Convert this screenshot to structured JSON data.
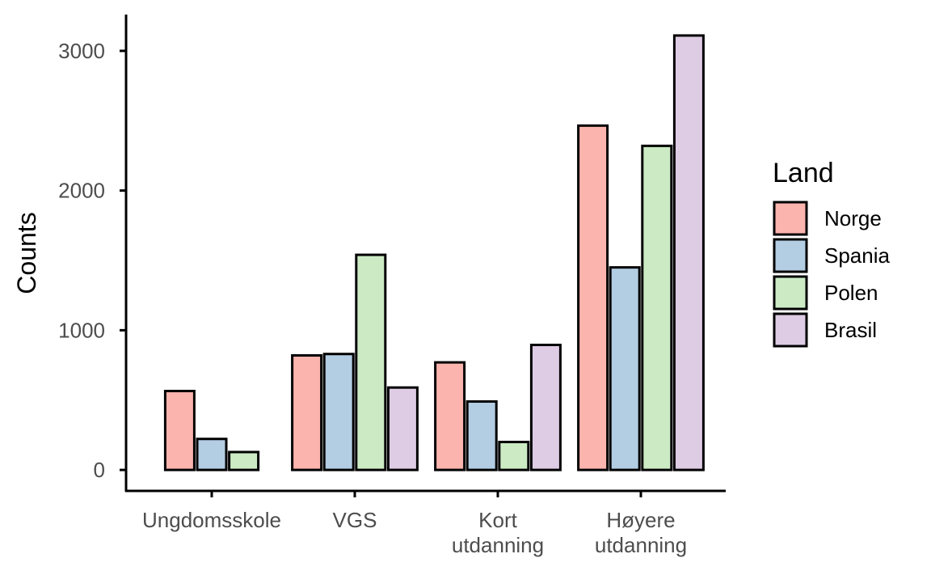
{
  "chart_data": {
    "type": "bar",
    "ylabel": "Counts",
    "xlabel": "",
    "categories": [
      [
        "Ungdomsskole"
      ],
      [
        "VGS"
      ],
      [
        "Kort",
        "utdanning"
      ],
      [
        "Høyere",
        "utdanning"
      ]
    ],
    "series": [
      {
        "name": "Norge",
        "color": "#FBB4AE",
        "values": [
          565,
          820,
          770,
          2465
        ]
      },
      {
        "name": "Spania",
        "color": "#B3CDE3",
        "values": [
          222,
          830,
          490,
          1450
        ]
      },
      {
        "name": "Polen",
        "color": "#CCEBC5",
        "values": [
          128,
          1540,
          200,
          2320
        ]
      },
      {
        "name": "Brasil",
        "color": "#DECBE4",
        "values": [
          null,
          590,
          895,
          3110
        ]
      }
    ],
    "yticks": [
      0,
      1000,
      2000,
      3000
    ],
    "ylim": [
      -150,
      3260
    ],
    "legend": {
      "title": "Land",
      "position": "right"
    },
    "grid": false
  }
}
